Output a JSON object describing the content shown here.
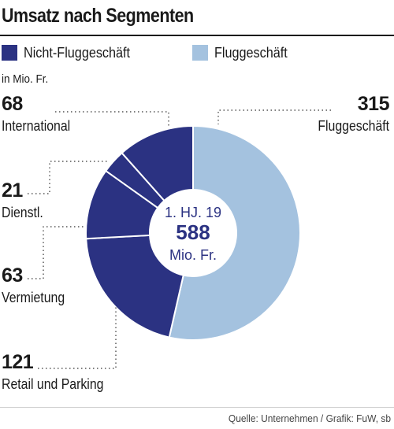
{
  "title": "Umsatz nach Segmenten",
  "unit": "in Mio. Fr.",
  "legend": [
    {
      "label": "Nicht-Fluggeschäft",
      "color": "#2b3282"
    },
    {
      "label": "Fluggeschäft",
      "color": "#a4c2df"
    }
  ],
  "center": {
    "line1": "1. HJ. 19",
    "value": "588",
    "line3": "Mio. Fr."
  },
  "source": "Quelle: Unternehmen / Grafik: FuW, sb",
  "chart_data": {
    "type": "pie",
    "donut": true,
    "total": 588,
    "slices": [
      {
        "label": "Fluggeschäft",
        "value": 315,
        "group": "Fluggeschäft",
        "color": "#a4c2df"
      },
      {
        "label": "Retail und Parking",
        "value": 121,
        "group": "Nicht-Fluggeschäft",
        "color": "#2b3282"
      },
      {
        "label": "Vermietung",
        "value": 63,
        "group": "Nicht-Fluggeschäft",
        "color": "#2b3282"
      },
      {
        "label": "Dienstl.",
        "value": 21,
        "group": "Nicht-Fluggeschäft",
        "color": "#2b3282"
      },
      {
        "label": "International",
        "value": 68,
        "group": "Nicht-Fluggeschäft",
        "color": "#2b3282"
      }
    ]
  }
}
